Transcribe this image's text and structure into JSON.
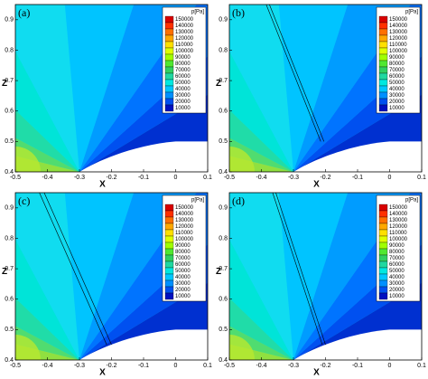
{
  "chart_data": [
    {
      "type": "contour",
      "label": "(a)",
      "xlabel": "X",
      "ylabel": "Z",
      "xlim": [
        -0.5,
        0.1
      ],
      "ylim": [
        0.4,
        0.95
      ],
      "xticks": [
        -0.5,
        -0.4,
        -0.3,
        -0.2,
        -0.1,
        0,
        0.1
      ],
      "yticks": [
        0.4,
        0.5,
        0.6,
        0.7,
        0.8,
        0.9
      ],
      "colorbar_title": "p[Pa]",
      "levels": [
        150000,
        140000,
        130000,
        120000,
        110000,
        100000,
        90000,
        80000,
        70000,
        60000,
        50000,
        40000,
        30000,
        20000,
        10000
      ],
      "colors": [
        "#d80000",
        "#ff3000",
        "#ff7000",
        "#ffa800",
        "#ffe000",
        "#e0ff00",
        "#a0ff00",
        "#50e830",
        "#30d060",
        "#20d8a0",
        "#00e8e0",
        "#00c8ff",
        "#0090ff",
        "#0050f0",
        "#0010c0"
      ]
    },
    {
      "type": "contour",
      "label": "(b)",
      "xlabel": "X",
      "ylabel": "Z",
      "xlim": [
        -0.5,
        0.1
      ],
      "ylim": [
        0.4,
        0.95
      ],
      "xticks": [
        -0.5,
        -0.4,
        -0.3,
        -0.2,
        -0.1,
        0,
        0.1
      ],
      "yticks": [
        0.4,
        0.5,
        0.6,
        0.7,
        0.8,
        0.9
      ],
      "colorbar_title": "p[Pa]",
      "levels": [
        150000,
        140000,
        130000,
        120000,
        110000,
        100000,
        90000,
        80000,
        70000,
        60000,
        50000,
        40000,
        30000,
        20000,
        10000
      ],
      "colors": [
        "#d80000",
        "#ff3000",
        "#ff7000",
        "#ffa800",
        "#ffe000",
        "#e0ff00",
        "#a0ff00",
        "#50e830",
        "#30d060",
        "#20d8a0",
        "#00e8e0",
        "#00c8ff",
        "#0090ff",
        "#0050f0",
        "#0010c0"
      ]
    },
    {
      "type": "contour",
      "label": "(c)",
      "xlabel": "X",
      "ylabel": "Z",
      "xlim": [
        -0.5,
        0.1
      ],
      "ylim": [
        0.4,
        0.95
      ],
      "xticks": [
        -0.5,
        -0.4,
        -0.3,
        -0.2,
        -0.1,
        0,
        0.1
      ],
      "yticks": [
        0.4,
        0.5,
        0.6,
        0.7,
        0.8,
        0.9
      ],
      "colorbar_title": "p[Pa]",
      "levels": [
        150000,
        140000,
        130000,
        120000,
        110000,
        100000,
        90000,
        80000,
        70000,
        60000,
        50000,
        40000,
        30000,
        20000,
        10000
      ],
      "colors": [
        "#d80000",
        "#ff3000",
        "#ff7000",
        "#ffa800",
        "#ffe000",
        "#e0ff00",
        "#a0ff00",
        "#50e830",
        "#30d060",
        "#20d8a0",
        "#00e8e0",
        "#00c8ff",
        "#0090ff",
        "#0050f0",
        "#0010c0"
      ]
    },
    {
      "type": "contour",
      "label": "(d)",
      "xlabel": "X",
      "ylabel": "Z",
      "xlim": [
        -0.5,
        0.1
      ],
      "ylim": [
        0.4,
        0.95
      ],
      "xticks": [
        -0.5,
        -0.4,
        -0.3,
        -0.2,
        -0.1,
        0,
        0.1
      ],
      "yticks": [
        0.4,
        0.5,
        0.6,
        0.7,
        0.8,
        0.9
      ],
      "colorbar_title": "p[Pa]",
      "levels": [
        150000,
        140000,
        130000,
        120000,
        110000,
        100000,
        90000,
        80000,
        70000,
        60000,
        50000,
        40000,
        30000,
        20000,
        10000
      ],
      "colors": [
        "#d80000",
        "#ff3000",
        "#ff7000",
        "#ffa800",
        "#ffe000",
        "#e0ff00",
        "#a0ff00",
        "#50e830",
        "#30d060",
        "#20d8a0",
        "#00e8e0",
        "#00c8ff",
        "#0090ff",
        "#0050f0",
        "#0010c0"
      ]
    }
  ]
}
